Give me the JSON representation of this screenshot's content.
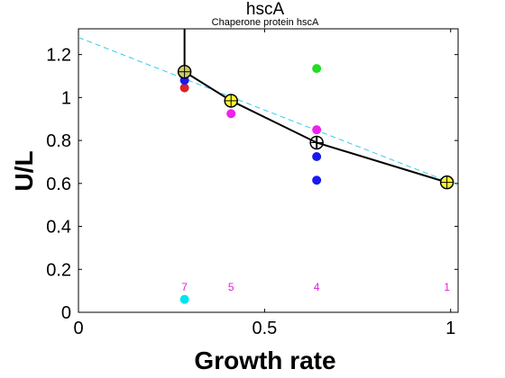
{
  "chart_data": {
    "type": "scatter",
    "title": "hscA",
    "subtitle": "Chaperone protein hscA",
    "xlabel": "Growth rate",
    "ylabel": "U/L",
    "xlim": [
      0,
      1.02
    ],
    "ylim": [
      0,
      1.32
    ],
    "xticks": [
      0,
      0.5,
      1
    ],
    "xtick_labels": [
      "0",
      "0.5",
      "1"
    ],
    "yticks": [
      0,
      0.2,
      0.4,
      0.6,
      0.8,
      1.0,
      1.2
    ],
    "ytick_labels": [
      "0",
      "0.2",
      "0.4",
      "0.6",
      "0.8",
      "1",
      "1.2"
    ],
    "grid": false,
    "trend_line": {
      "style": "dashed",
      "color": "#33ccee",
      "x": [
        0,
        1.02
      ],
      "y": [
        1.28,
        0.59
      ]
    },
    "mean_series": {
      "color": "#000000",
      "x": [
        0.285,
        0.41,
        0.64,
        0.99
      ],
      "y": [
        1.12,
        0.985,
        0.79,
        0.605
      ],
      "error_upper": [
        1.32,
        0.985,
        0.82,
        0.605
      ],
      "error_lower": [
        1.12,
        0.985,
        0.76,
        0.605
      ],
      "marker_fill": [
        "#cccc66",
        "#ffff33",
        "none",
        "#ffff33"
      ]
    },
    "points": [
      {
        "x": 0.285,
        "y": 1.045,
        "color": "#dd2222"
      },
      {
        "x": 0.285,
        "y": 1.08,
        "color": "#1a1aee"
      },
      {
        "x": 0.285,
        "y": 1.11,
        "color": "#1a1aee"
      },
      {
        "x": 0.285,
        "y": 0.06,
        "color": "#00e5ee"
      },
      {
        "x": 0.41,
        "y": 0.925,
        "color": "#ee22ee"
      },
      {
        "x": 0.64,
        "y": 1.135,
        "color": "#22dd22"
      },
      {
        "x": 0.64,
        "y": 0.85,
        "color": "#ee22ee"
      },
      {
        "x": 0.64,
        "y": 0.725,
        "color": "#1a1aee"
      },
      {
        "x": 0.64,
        "y": 0.615,
        "color": "#1a1aee"
      }
    ],
    "counts": [
      {
        "x": 0.285,
        "label": "7"
      },
      {
        "x": 0.41,
        "label": "5"
      },
      {
        "x": 0.64,
        "label": "4"
      },
      {
        "x": 0.99,
        "label": "1"
      }
    ],
    "count_label_y": 0.1,
    "count_color": "#dd22dd"
  }
}
